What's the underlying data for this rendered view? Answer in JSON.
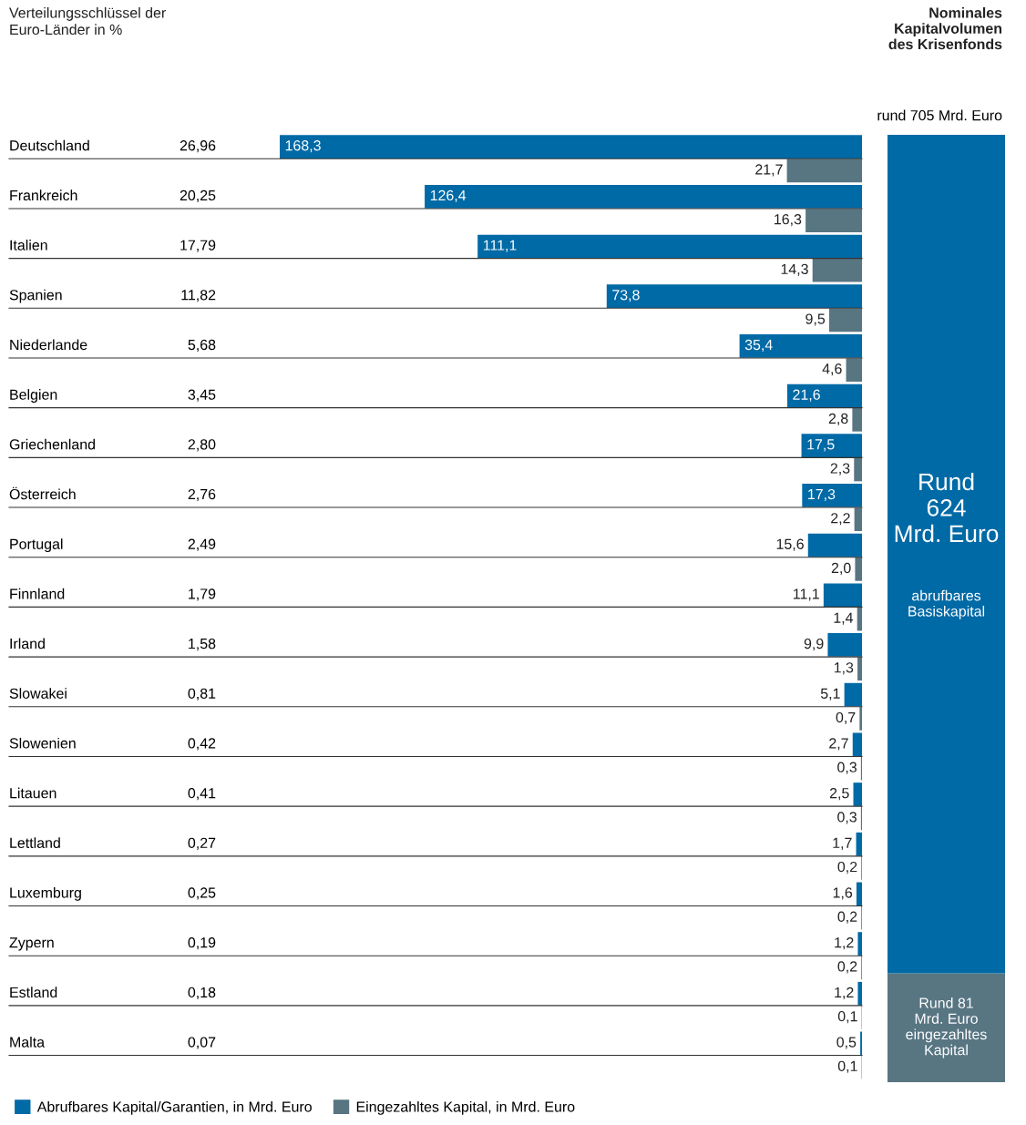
{
  "chart_data": [
    {
      "type": "bar",
      "orientation": "horizontal",
      "categories": [
        "Deutschland",
        "Frankreich",
        "Italien",
        "Spanien",
        "Niederlande",
        "Belgien",
        "Griechenland",
        "Österreich",
        "Portugal",
        "Finnland",
        "Irland",
        "Slowakei",
        "Slowenien",
        "Litauen",
        "Lettland",
        "Luxemburg",
        "Zypern",
        "Estland",
        "Malta"
      ],
      "series": [
        {
          "name": "Abrufbares Kapital/Garantien, in Mrd. Euro",
          "color": "#006aa6",
          "values": [
            168.3,
            126.4,
            111.1,
            73.8,
            35.4,
            21.6,
            17.5,
            17.3,
            15.6,
            11.1,
            9.9,
            5.1,
            2.7,
            2.5,
            1.7,
            1.6,
            1.2,
            1.2,
            0.5
          ],
          "value_labels": [
            "168,3",
            "126,4",
            "111,1",
            "73,8",
            "35,4",
            "21,6",
            "17,5",
            "17,3",
            "15,6",
            "11,1",
            "9,9",
            "5,1",
            "2,7",
            "2,5",
            "1,7",
            "1,6",
            "1,2",
            "1,2",
            "0,5"
          ]
        },
        {
          "name": "Eingezahltes Kapital, in Mrd. Euro",
          "color": "#587582",
          "values": [
            21.7,
            16.3,
            14.3,
            9.5,
            4.6,
            2.8,
            2.3,
            2.2,
            2.0,
            1.4,
            1.3,
            0.7,
            0.3,
            0.3,
            0.2,
            0.2,
            0.2,
            0.1,
            0.1
          ],
          "value_labels": [
            "21,7",
            "16,3",
            "14,3",
            "9,5",
            "4,6",
            "2,8",
            "2,3",
            "2,2",
            "2,0",
            "1,4",
            "1,3",
            "0,7",
            "0,3",
            "0,3",
            "0,2",
            "0,2",
            "0,2",
            "0,1",
            "0,1"
          ]
        }
      ],
      "annotations": [
        "26,96",
        "20,25",
        "17,79",
        "11,82",
        "5,68",
        "3,45",
        "2,80",
        "2,76",
        "2,49",
        "1,79",
        "1,58",
        "0,81",
        "0,42",
        "0,41",
        "0,27",
        "0,25",
        "0,19",
        "0,18",
        "0,07",
        "Verteilungsschlüssel der\nEuro-Länder in %"
      ],
      "tick_labels": false,
      "legend": "bottom left"
    },
    {
      "type": "bar",
      "stacked": true,
      "title": "Nominales\nKapitalvolumen\ndes Krisenfonds",
      "subtitle": "rund 705 Mrd. Euro",
      "categories": [
        null
      ],
      "series": [
        {
          "color": "#587582",
          "values": [
            81
          ],
          "value_labels": [
            "Rund 81\nMrd. Euro\neingezahltes\nKapital"
          ]
        },
        {
          "color": "#006aa6",
          "values": [
            624
          ],
          "value_labels": [
            "Rund\n624\nMrd. Euro"
          ]
        }
      ],
      "annotations": [
        "abrufbares\nBasiskapital"
      ],
      "ylim": [
        0,
        705
      ],
      "tick_labels": false
    }
  ]
}
